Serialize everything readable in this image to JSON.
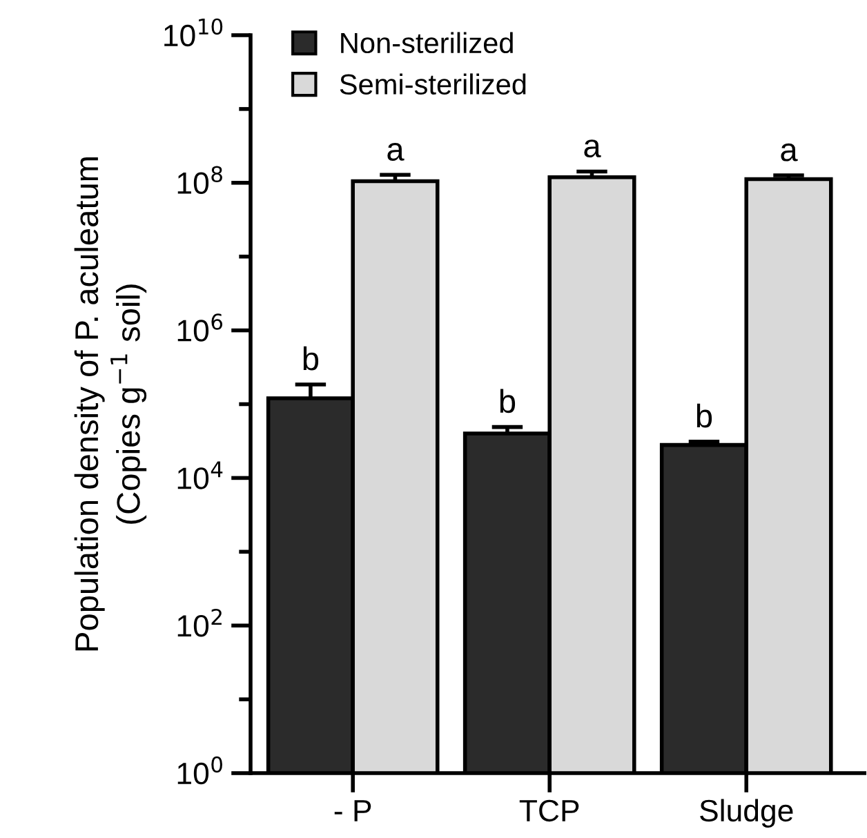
{
  "chart_data": {
    "type": "bar",
    "ylabel": "Population density of P. aculeatum\n(Copies g$^{−1}$ soil)",
    "categories": [
      "- P",
      "TCP",
      "Sludge"
    ],
    "series": [
      {
        "name": "Non-sterilized",
        "color": "#2b2b2b",
        "values": [
          120000,
          40000,
          28000
        ],
        "errors": [
          65000,
          9000,
          3000
        ]
      },
      {
        "name": "Semi-sterilized",
        "color": "#d9d9d9",
        "values": [
          105000000,
          119000000,
          112000000
        ],
        "errors": [
          23000000,
          23000000,
          14000000
        ]
      }
    ],
    "log": true,
    "ylim": [
      1,
      10000000000
    ],
    "yticks": [
      {
        "value": 1,
        "label": "10$^{0}$"
      },
      {
        "value": 10,
        "label": null
      },
      {
        "value": 100,
        "label": "10$^{2}$"
      },
      {
        "value": 1000,
        "label": null
      },
      {
        "value": 10000,
        "label": "10$^{4}$"
      },
      {
        "value": 100000,
        "label": null
      },
      {
        "value": 1000000,
        "label": "10$^{6}$"
      },
      {
        "value": 10000000,
        "label": null
      },
      {
        "value": 100000000,
        "label": "10$^{8}$"
      },
      {
        "value": 1000000000,
        "label": null
      },
      {
        "value": 10000000000,
        "label": "10$^{10}$"
      }
    ],
    "annotations": [
      {
        "text": "b",
        "x": "- P",
        "y": 185000
      },
      {
        "text": "b",
        "x": "TCP",
        "y": 49000
      },
      {
        "text": "b",
        "x": "Sludge",
        "y": 31000
      },
      {
        "text": "a",
        "x": "- P",
        "y": 128000000
      },
      {
        "text": "a",
        "x": "TCP",
        "y": 142000000
      },
      {
        "text": "a",
        "x": "Sludge",
        "y": 126000000
      }
    ],
    "legend": "top left",
    "grid": false
  }
}
